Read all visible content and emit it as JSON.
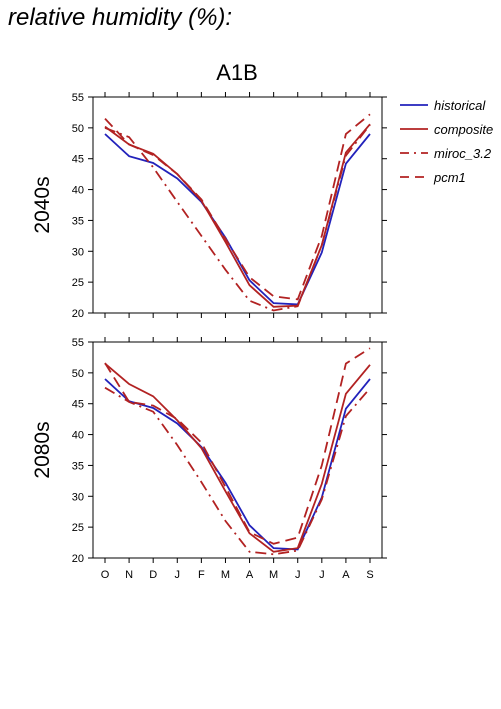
{
  "page": {
    "title": "relative humidity (%):"
  },
  "chart_data": {
    "type": "line",
    "title": "A1B",
    "categories": [
      "O",
      "N",
      "D",
      "J",
      "F",
      "M",
      "A",
      "M",
      "J",
      "J",
      "A",
      "S"
    ],
    "ylim": [
      20,
      55
    ],
    "yticks": [
      20,
      25,
      30,
      35,
      40,
      45,
      50,
      55
    ],
    "legend_position": "right",
    "series_styles": [
      {
        "name": "historical",
        "color": "#2222bb",
        "dash": "solid"
      },
      {
        "name": "composite",
        "color": "#b22222",
        "dash": "solid"
      },
      {
        "name": "miroc_3.2",
        "color": "#b22222",
        "dash": "dashdot"
      },
      {
        "name": "pcm1",
        "color": "#b22222",
        "dash": "dashed"
      }
    ],
    "panels": [
      {
        "label": "2040s",
        "series": [
          {
            "name": "historical",
            "values": [
              49.0,
              45.4,
              44.3,
              41.8,
              38.0,
              32.2,
              25.3,
              21.6,
              21.4,
              29.8,
              44.2,
              49.0
            ]
          },
          {
            "name": "composite",
            "values": [
              50.2,
              47.3,
              45.8,
              42.5,
              38.2,
              31.5,
              24.5,
              21.0,
              21.2,
              31.0,
              46.0,
              50.6
            ]
          },
          {
            "name": "miroc_3.2",
            "values": [
              50.0,
              48.5,
              43.6,
              38.0,
              32.5,
              27.0,
              22.0,
              20.4,
              21.1,
              31.0,
              45.5,
              50.5
            ]
          },
          {
            "name": "pcm1",
            "values": [
              51.5,
              47.3,
              45.6,
              42.5,
              38.4,
              32.0,
              25.8,
              22.7,
              22.2,
              32.5,
              49.0,
              52.2
            ]
          }
        ]
      },
      {
        "label": "2080s",
        "series": [
          {
            "name": "historical",
            "values": [
              49.0,
              45.4,
              44.3,
              41.8,
              38.0,
              32.2,
              25.3,
              21.6,
              21.4,
              29.8,
              44.2,
              49.0
            ]
          },
          {
            "name": "composite",
            "values": [
              51.5,
              48.2,
              46.2,
              42.3,
              37.8,
              30.8,
              24.0,
              21.0,
              21.6,
              32.0,
              46.6,
              51.3
            ]
          },
          {
            "name": "miroc_3.2",
            "values": [
              47.6,
              45.3,
              43.7,
              38.3,
              32.3,
              26.0,
              21.0,
              20.6,
              21.2,
              29.5,
              43.0,
              47.5
            ]
          },
          {
            "name": "pcm1",
            "values": [
              51.6,
              45.3,
              44.7,
              42.5,
              38.7,
              31.5,
              24.2,
              22.3,
              23.3,
              35.0,
              51.5,
              54.0
            ]
          }
        ]
      }
    ]
  }
}
